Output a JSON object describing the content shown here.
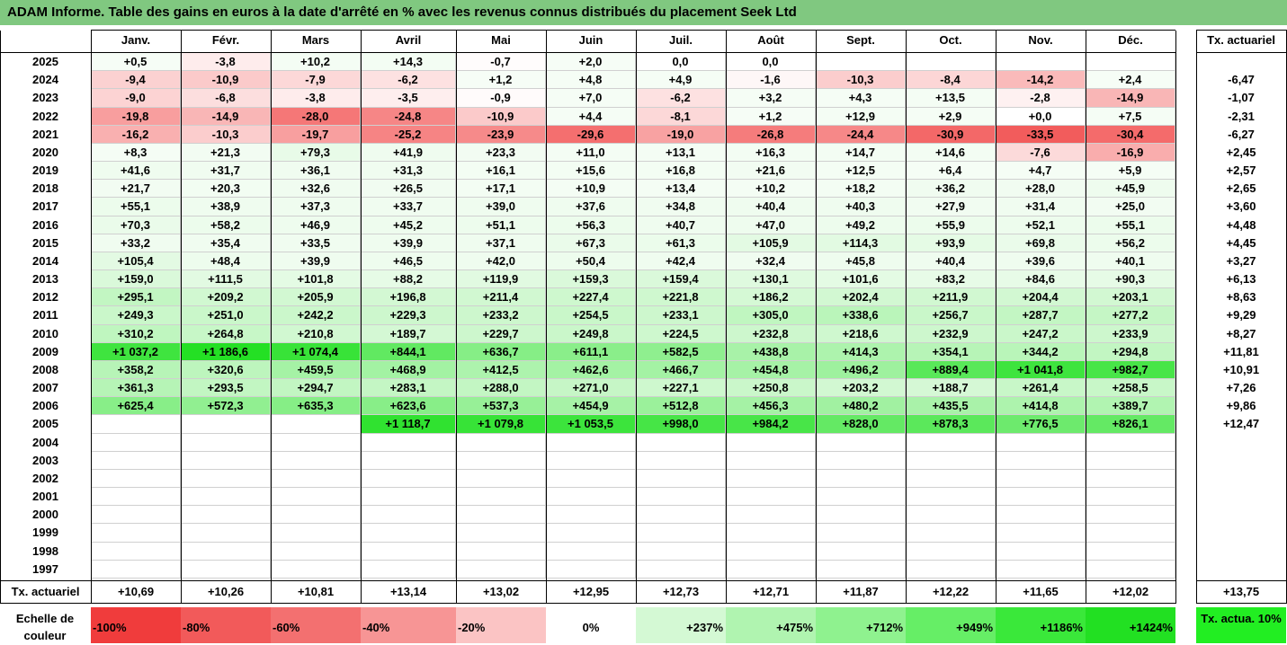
{
  "title": "ADAM Informe. Table des gains en euros à la date d'arrêté en % avec les revenus connus distribués du placement Seek Ltd",
  "months": [
    "Janv.",
    "Févr.",
    "Mars",
    "Avril",
    "Mai",
    "Juin",
    "Juil.",
    "Août",
    "Sept.",
    "Oct.",
    "Nov.",
    "Déc."
  ],
  "rate_header": "Tx. actuariel",
  "footer_label": "Tx. actuariel",
  "rows": [
    {
      "year": "2025",
      "values": [
        "+0,5",
        "-3,8",
        "+10,2",
        "+14,3",
        "-0,7",
        "+2,0",
        "0,0",
        "0,0",
        "",
        "",
        "",
        ""
      ],
      "rate": ""
    },
    {
      "year": "2024",
      "values": [
        "-9,4",
        "-10,9",
        "-7,9",
        "-6,2",
        "+1,2",
        "+4,8",
        "+4,9",
        "-1,6",
        "-10,3",
        "-8,4",
        "-14,2",
        "+2,4"
      ],
      "rate": "-6,47"
    },
    {
      "year": "2023",
      "values": [
        "-9,0",
        "-6,8",
        "-3,8",
        "-3,5",
        "-0,9",
        "+7,0",
        "-6,2",
        "+3,2",
        "+4,3",
        "+13,5",
        "-2,8",
        "-14,9"
      ],
      "rate": "-1,07"
    },
    {
      "year": "2022",
      "values": [
        "-19,8",
        "-14,9",
        "-28,0",
        "-24,8",
        "-10,9",
        "+4,4",
        "-8,1",
        "+1,2",
        "+12,9",
        "+2,9",
        "+0,0",
        "+7,5"
      ],
      "rate": "-2,31"
    },
    {
      "year": "2021",
      "values": [
        "-16,2",
        "-10,3",
        "-19,7",
        "-25,2",
        "-23,9",
        "-29,6",
        "-19,0",
        "-26,8",
        "-24,4",
        "-30,9",
        "-33,5",
        "-30,4"
      ],
      "rate": "-6,27"
    },
    {
      "year": "2020",
      "values": [
        "+8,3",
        "+21,3",
        "+79,3",
        "+41,9",
        "+23,3",
        "+11,0",
        "+13,1",
        "+16,3",
        "+14,7",
        "+14,6",
        "-7,6",
        "-16,9"
      ],
      "rate": "+2,45"
    },
    {
      "year": "2019",
      "values": [
        "+41,6",
        "+31,7",
        "+36,1",
        "+31,3",
        "+16,1",
        "+15,6",
        "+16,8",
        "+21,6",
        "+12,5",
        "+6,4",
        "+4,7",
        "+5,9"
      ],
      "rate": "+2,57"
    },
    {
      "year": "2018",
      "values": [
        "+21,7",
        "+20,3",
        "+32,6",
        "+26,5",
        "+17,1",
        "+10,9",
        "+13,4",
        "+10,2",
        "+18,2",
        "+36,2",
        "+28,0",
        "+45,9"
      ],
      "rate": "+2,65"
    },
    {
      "year": "2017",
      "values": [
        "+55,1",
        "+38,9",
        "+37,3",
        "+33,7",
        "+39,0",
        "+37,6",
        "+34,8",
        "+40,4",
        "+40,3",
        "+27,9",
        "+31,4",
        "+25,0"
      ],
      "rate": "+3,60"
    },
    {
      "year": "2016",
      "values": [
        "+70,3",
        "+58,2",
        "+46,9",
        "+45,2",
        "+51,1",
        "+56,3",
        "+40,7",
        "+47,0",
        "+49,2",
        "+55,9",
        "+52,1",
        "+55,1"
      ],
      "rate": "+4,48"
    },
    {
      "year": "2015",
      "values": [
        "+33,2",
        "+35,4",
        "+33,5",
        "+39,9",
        "+37,1",
        "+67,3",
        "+61,3",
        "+105,9",
        "+114,3",
        "+93,9",
        "+69,8",
        "+56,2"
      ],
      "rate": "+4,45"
    },
    {
      "year": "2014",
      "values": [
        "+105,4",
        "+48,4",
        "+39,9",
        "+46,5",
        "+42,0",
        "+50,4",
        "+42,4",
        "+32,4",
        "+45,8",
        "+40,4",
        "+39,6",
        "+40,1"
      ],
      "rate": "+3,27"
    },
    {
      "year": "2013",
      "values": [
        "+159,0",
        "+111,5",
        "+101,8",
        "+88,2",
        "+119,9",
        "+159,3",
        "+159,4",
        "+130,1",
        "+101,6",
        "+83,2",
        "+84,6",
        "+90,3"
      ],
      "rate": "+6,13"
    },
    {
      "year": "2012",
      "values": [
        "+295,1",
        "+209,2",
        "+205,9",
        "+196,8",
        "+211,4",
        "+227,4",
        "+221,8",
        "+186,2",
        "+202,4",
        "+211,9",
        "+204,4",
        "+203,1"
      ],
      "rate": "+8,63"
    },
    {
      "year": "2011",
      "values": [
        "+249,3",
        "+251,0",
        "+242,2",
        "+229,3",
        "+233,2",
        "+254,5",
        "+233,1",
        "+305,0",
        "+338,6",
        "+256,7",
        "+287,7",
        "+277,2"
      ],
      "rate": "+9,29"
    },
    {
      "year": "2010",
      "values": [
        "+310,2",
        "+264,8",
        "+210,8",
        "+189,7",
        "+229,7",
        "+249,8",
        "+224,5",
        "+232,8",
        "+218,6",
        "+232,9",
        "+247,2",
        "+233,9"
      ],
      "rate": "+8,27"
    },
    {
      "year": "2009",
      "values": [
        "+1 037,2",
        "+1 186,6",
        "+1 074,4",
        "+844,1",
        "+636,7",
        "+611,1",
        "+582,5",
        "+438,8",
        "+414,3",
        "+354,1",
        "+344,2",
        "+294,8"
      ],
      "rate": "+11,81"
    },
    {
      "year": "2008",
      "values": [
        "+358,2",
        "+320,6",
        "+459,5",
        "+468,9",
        "+412,5",
        "+462,6",
        "+466,7",
        "+454,8",
        "+496,2",
        "+889,4",
        "+1 041,8",
        "+982,7"
      ],
      "rate": "+10,91"
    },
    {
      "year": "2007",
      "values": [
        "+361,3",
        "+293,5",
        "+294,7",
        "+283,1",
        "+288,0",
        "+271,0",
        "+227,1",
        "+250,8",
        "+203,2",
        "+188,7",
        "+261,4",
        "+258,5"
      ],
      "rate": "+7,26"
    },
    {
      "year": "2006",
      "values": [
        "+625,4",
        "+572,3",
        "+635,3",
        "+623,6",
        "+537,3",
        "+454,9",
        "+512,8",
        "+456,3",
        "+480,2",
        "+435,5",
        "+414,8",
        "+389,7"
      ],
      "rate": "+9,86"
    },
    {
      "year": "2005",
      "values": [
        "",
        "",
        "",
        "+1 118,7",
        "+1 079,8",
        "+1 053,5",
        "+998,0",
        "+984,2",
        "+828,0",
        "+878,3",
        "+776,5",
        "+826,1"
      ],
      "rate": "+12,47"
    },
    {
      "year": "2004",
      "values": [
        "",
        "",
        "",
        "",
        "",
        "",
        "",
        "",
        "",
        "",
        "",
        ""
      ],
      "rate": ""
    },
    {
      "year": "2003",
      "values": [
        "",
        "",
        "",
        "",
        "",
        "",
        "",
        "",
        "",
        "",
        "",
        ""
      ],
      "rate": ""
    },
    {
      "year": "2002",
      "values": [
        "",
        "",
        "",
        "",
        "",
        "",
        "",
        "",
        "",
        "",
        "",
        ""
      ],
      "rate": ""
    },
    {
      "year": "2001",
      "values": [
        "",
        "",
        "",
        "",
        "",
        "",
        "",
        "",
        "",
        "",
        "",
        ""
      ],
      "rate": ""
    },
    {
      "year": "2000",
      "values": [
        "",
        "",
        "",
        "",
        "",
        "",
        "",
        "",
        "",
        "",
        "",
        ""
      ],
      "rate": ""
    },
    {
      "year": "1999",
      "values": [
        "",
        "",
        "",
        "",
        "",
        "",
        "",
        "",
        "",
        "",
        "",
        ""
      ],
      "rate": ""
    },
    {
      "year": "1998",
      "values": [
        "",
        "",
        "",
        "",
        "",
        "",
        "",
        "",
        "",
        "",
        "",
        ""
      ],
      "rate": ""
    },
    {
      "year": "1997",
      "values": [
        "",
        "",
        "",
        "",
        "",
        "",
        "",
        "",
        "",
        "",
        "",
        ""
      ],
      "rate": ""
    }
  ],
  "footer_rates": [
    "+10,69",
    "+10,26",
    "+10,81",
    "+13,14",
    "+13,02",
    "+12,95",
    "+12,73",
    "+12,71",
    "+11,87",
    "+12,22",
    "+11,65",
    "+12,02"
  ],
  "total_rate": "+13,75",
  "scale_label": "Echelle de couleur",
  "scale": [
    {
      "label": "-100%",
      "color": "#f03c3c",
      "align": "left"
    },
    {
      "label": "-80%",
      "color": "#f25a5a",
      "align": "left"
    },
    {
      "label": "-60%",
      "color": "#f37070",
      "align": "left"
    },
    {
      "label": "-40%",
      "color": "#f79595",
      "align": "left"
    },
    {
      "label": "-20%",
      "color": "#fbc4c4",
      "align": "left"
    },
    {
      "label": "0%",
      "color": "#ffffff",
      "align": "center"
    },
    {
      "label": "+237%",
      "color": "#d4f9d4",
      "align": "right"
    },
    {
      "label": "+475%",
      "color": "#b0f4b0",
      "align": "right"
    },
    {
      "label": "+712%",
      "color": "#8ff28f",
      "align": "right"
    },
    {
      "label": "+949%",
      "color": "#66ee66",
      "align": "right"
    },
    {
      "label": "+1186%",
      "color": "#3ae83a",
      "align": "right"
    },
    {
      "label": "+1424%",
      "color": "#22e022",
      "align": "right"
    }
  ],
  "scale_rate_label": "Tx. actua. 10%",
  "colors": {
    "title_bg": "#80c880",
    "scale_rate_bg": "#22ee22"
  }
}
